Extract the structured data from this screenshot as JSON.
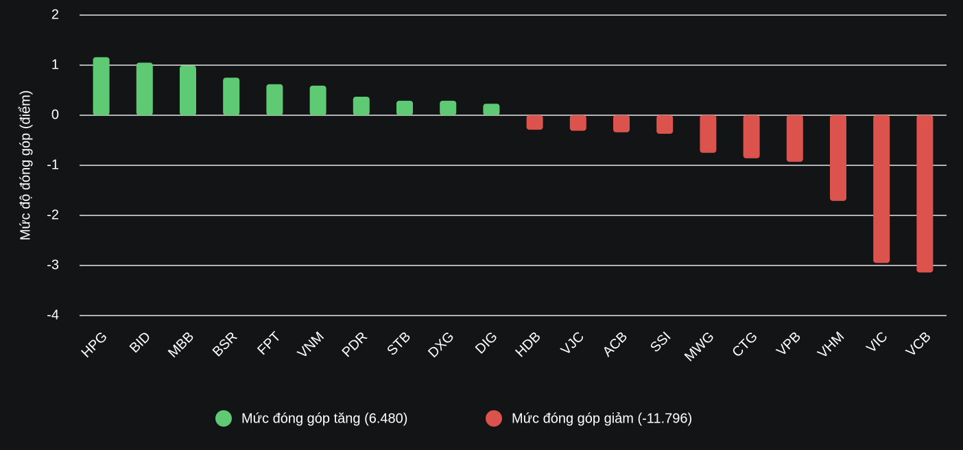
{
  "chart_data": {
    "type": "bar",
    "ylabel": "Mức độ đóng góp (điểm)",
    "categories": [
      "HPG",
      "BID",
      "MBB",
      "BSR",
      "FPT",
      "VNM",
      "PDR",
      "STB",
      "DXG",
      "DIG",
      "HDB",
      "VJC",
      "ACB",
      "SSI",
      "MWG",
      "CTG",
      "VPB",
      "VHM",
      "VIC",
      "VCB"
    ],
    "series": [
      {
        "name": "Mức đóng góp tăng (6.480)",
        "color": "#5ecb74",
        "values": [
          1.16,
          1.05,
          0.99,
          0.75,
          0.62,
          0.59,
          0.37,
          0.29,
          0.29,
          0.23,
          null,
          null,
          null,
          null,
          null,
          null,
          null,
          null,
          null,
          null
        ]
      },
      {
        "name": "Mức đóng góp giảm (-11.796)",
        "color": "#dc524d",
        "values": [
          null,
          null,
          null,
          null,
          null,
          null,
          null,
          null,
          null,
          null,
          -0.29,
          -0.31,
          -0.34,
          -0.37,
          -0.75,
          -0.86,
          -0.93,
          -1.71,
          -2.95,
          -3.14
        ]
      }
    ],
    "ylim": [
      -4,
      2
    ],
    "yticks": [
      -4,
      -3,
      -2,
      -1,
      0,
      1,
      2
    ],
    "grid": true,
    "legend": "bottom"
  }
}
